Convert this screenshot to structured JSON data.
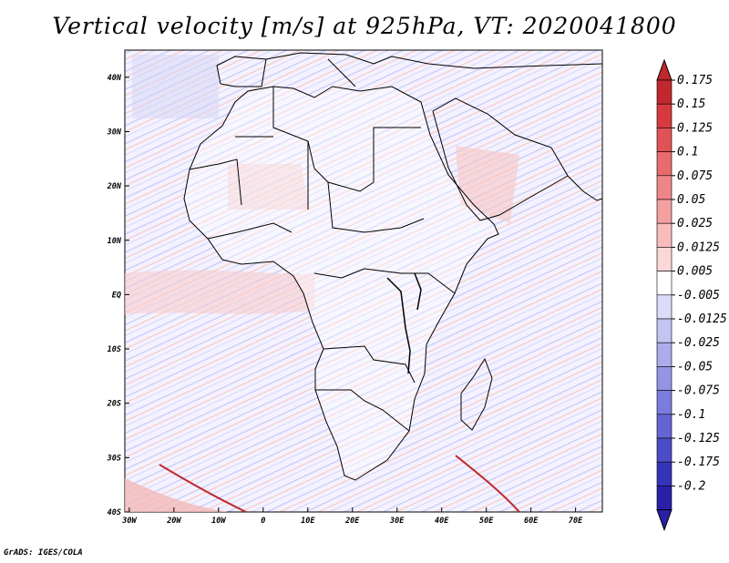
{
  "title": "Vertical velocity [m/s] at 925hPa, VT: 2020041800",
  "footer": "GrADS: IGES/COLA",
  "map": {
    "lat_labels": [
      "40N",
      "30N",
      "20N",
      "10N",
      "EQ",
      "10S",
      "20S",
      "30S",
      "40S"
    ],
    "lat_values": [
      40,
      30,
      20,
      10,
      0,
      -10,
      -20,
      -30,
      -40
    ],
    "lon_labels": [
      "30W",
      "20W",
      "10W",
      "0",
      "10E",
      "20E",
      "30E",
      "40E",
      "50E",
      "60E",
      "70E"
    ],
    "lon_values": [
      -30,
      -20,
      -10,
      0,
      10,
      20,
      30,
      40,
      50,
      60,
      70
    ],
    "lon_range": [
      -31,
      76
    ],
    "lat_range": [
      -40,
      45
    ]
  },
  "colorbar": {
    "labels": [
      "0.175",
      "0.15",
      "0.125",
      "0.1",
      "0.075",
      "0.05",
      "0.025",
      "0.0125",
      "0.005",
      "-0.005",
      "-0.0125",
      "-0.025",
      "-0.05",
      "-0.075",
      "-0.1",
      "-0.125",
      "-0.175",
      "-0.2"
    ],
    "colors": [
      "#c0282d",
      "#d73a3e",
      "#e05255",
      "#e86b6d",
      "#ee8586",
      "#f4a0a0",
      "#f8bcbc",
      "#fbd8d8",
      "#ffffff",
      "#dcdcf8",
      "#c4c4f2",
      "#acacec",
      "#9494e4",
      "#7c7cdc",
      "#6464d2",
      "#4c4cc6",
      "#3434b8",
      "#2a1fa8"
    ]
  }
}
